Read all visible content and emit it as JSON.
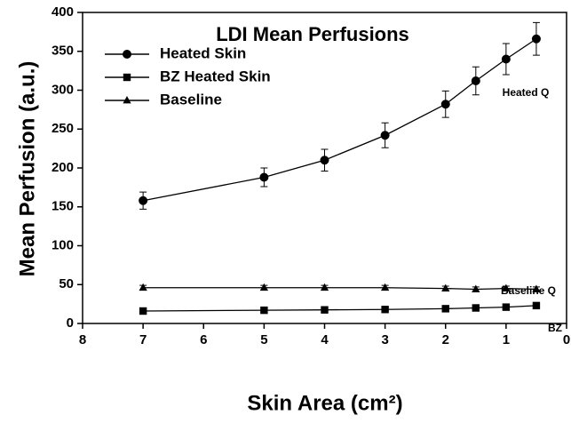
{
  "chart_data": {
    "type": "line",
    "title": "LDI Mean Perfusions",
    "xlabel": "Skin Area (cm²)",
    "ylabel": "Mean Perfusion (a.u.)",
    "x": [
      7,
      5,
      4,
      3,
      2,
      1.5,
      1,
      0.5
    ],
    "series": [
      {
        "name": "Heated Skin",
        "color": "#000000",
        "marker": "circle",
        "values": [
          158,
          188,
          210,
          242,
          282,
          312,
          340,
          366
        ],
        "errors": [
          11,
          12,
          14,
          16,
          17,
          18,
          20,
          21
        ]
      },
      {
        "name": "BZ Heated Skin",
        "color": "#000000",
        "marker": "square",
        "values": [
          16,
          17,
          17.5,
          18,
          19,
          20,
          21,
          23
        ],
        "errors": [
          1,
          1,
          1,
          1,
          1,
          1,
          1.5,
          1.5
        ]
      },
      {
        "name": "Baseline",
        "color": "#000000",
        "marker": "triangle",
        "values": [
          46,
          46,
          46,
          46,
          45,
          44,
          45,
          44
        ],
        "errors": [
          3,
          3,
          3,
          3,
          3,
          3,
          3,
          3
        ]
      }
    ],
    "annotations": [
      "Heated Q",
      "Baseline Q",
      "BZ"
    ],
    "xlim": [
      8,
      0
    ],
    "xticks": [
      8,
      7,
      6,
      5,
      4,
      3,
      2,
      1,
      0
    ],
    "ylim": [
      0,
      400
    ],
    "yticks": [
      0,
      50,
      100,
      150,
      200,
      250,
      300,
      350,
      400
    ],
    "grid": false,
    "legend": "upper left"
  }
}
